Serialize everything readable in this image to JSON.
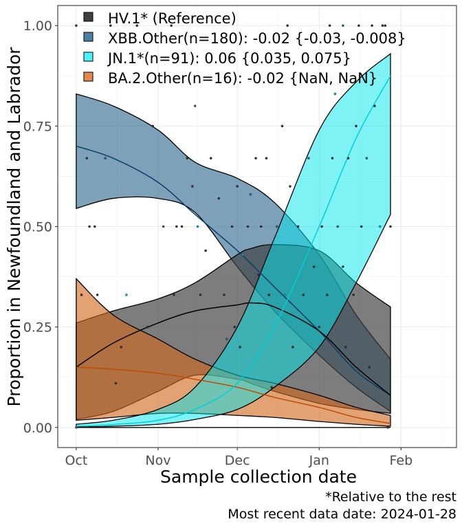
{
  "chart_data": {
    "type": "area",
    "xlabel": "Sample collection date",
    "ylabel": "Proportion in Newfoundland and Labrador",
    "x_ticks": [
      "Oct",
      "Nov",
      "Dec",
      "Jan",
      "Feb"
    ],
    "x_tick_dates": [
      "2023-10-01",
      "2023-11-01",
      "2023-12-01",
      "2024-01-01",
      "2024-02-01"
    ],
    "xlim": [
      "2023-09-24",
      "2024-02-22"
    ],
    "y_ticks": [
      "0.00",
      "0.25",
      "0.50",
      "0.75",
      "1.00"
    ],
    "ylim": [
      -0.05,
      1.05
    ],
    "grid": true,
    "legend_position": "top-left",
    "footnotes": [
      "*Relative to the rest",
      "Most recent data date: 2024-01-28"
    ],
    "series": [
      {
        "name": "HV.1* (Reference)",
        "color": "#404040",
        "x": [
          "2023-10-01",
          "2023-10-15",
          "2023-11-01",
          "2023-11-15",
          "2023-12-01",
          "2023-12-06",
          "2023-12-15",
          "2024-01-01",
          "2024-01-15",
          "2024-01-28"
        ],
        "fit": [
          0.15,
          0.21,
          0.26,
          0.29,
          0.305,
          0.31,
          0.3,
          0.24,
          0.15,
          0.08
        ],
        "lower": [
          0.02,
          0.04,
          0.09,
          0.13,
          0.12,
          0.11,
          0.09,
          0.06,
          0.045,
          0.035
        ],
        "upper": [
          0.26,
          0.29,
          0.32,
          0.36,
          0.43,
          0.445,
          0.455,
          0.44,
          0.36,
          0.3
        ]
      },
      {
        "name": "XBB.Other(n=180): -0.02 {-0.03, -0.008}",
        "color": "#2e6790",
        "x": [
          "2023-10-01",
          "2023-10-15",
          "2023-11-01",
          "2023-11-15",
          "2023-12-01",
          "2023-12-15",
          "2024-01-01",
          "2024-01-15",
          "2024-01-28"
        ],
        "fit": [
          0.7,
          0.67,
          0.61,
          0.53,
          0.44,
          0.35,
          0.24,
          0.14,
          0.08
        ],
        "lower": [
          0.545,
          0.57,
          0.57,
          0.535,
          0.4,
          0.29,
          0.18,
          0.1,
          0.04
        ],
        "upper": [
          0.83,
          0.8,
          0.74,
          0.66,
          0.62,
          0.56,
          0.43,
          0.28,
          0.17
        ]
      },
      {
        "name": "JN.1*(n=91): 0.06 {0.035, 0.075}",
        "color": "#00e5ee",
        "x": [
          "2023-10-01",
          "2023-10-15",
          "2023-11-01",
          "2023-11-15",
          "2023-12-01",
          "2023-12-15",
          "2024-01-01",
          "2024-01-15",
          "2024-01-28"
        ],
        "fit": [
          0.003,
          0.007,
          0.018,
          0.045,
          0.11,
          0.25,
          0.5,
          0.72,
          0.875
        ],
        "lower": [
          0.001,
          0.003,
          0.008,
          0.02,
          0.045,
          0.1,
          0.2,
          0.36,
          0.53
        ],
        "upper": [
          0.008,
          0.018,
          0.045,
          0.1,
          0.25,
          0.47,
          0.74,
          0.86,
          0.93
        ]
      },
      {
        "name": "BA.2.Other(n=16): -0.02 {NaN, NaN}",
        "color": "#d2691e",
        "x": [
          "2023-10-01",
          "2023-10-15",
          "2023-11-01",
          "2023-11-15",
          "2023-12-01",
          "2023-12-15",
          "2024-01-01",
          "2024-01-15",
          "2024-01-28"
        ],
        "fit": [
          0.15,
          0.145,
          0.135,
          0.12,
          0.1,
          0.075,
          0.05,
          0.025,
          0.01
        ],
        "lower": [
          0.018,
          0.025,
          0.035,
          0.035,
          0.03,
          0.025,
          0.015,
          0.008,
          0.003
        ],
        "upper": [
          0.37,
          0.28,
          0.22,
          0.17,
          0.13,
          0.11,
          0.08,
          0.05,
          0.03
        ]
      }
    ],
    "points": [
      {
        "x": "2023-10-01",
        "y": 0.0
      },
      {
        "x": "2023-10-01",
        "y": 1.0
      },
      {
        "x": "2023-10-03",
        "y": 0.33
      },
      {
        "x": "2023-10-05",
        "y": 0.67
      },
      {
        "x": "2023-10-06",
        "y": 0.5
      },
      {
        "x": "2023-10-08",
        "y": 0.5
      },
      {
        "x": "2023-10-09",
        "y": 0.33
      },
      {
        "x": "2023-10-12",
        "y": 0.67
      },
      {
        "x": "2023-10-14",
        "y": 1.0
      },
      {
        "x": "2023-10-16",
        "y": 0.11
      },
      {
        "x": "2023-10-18",
        "y": 0.2
      },
      {
        "x": "2023-10-20",
        "y": 0.33
      },
      {
        "x": "2023-10-28",
        "y": 0.25
      },
      {
        "x": "2023-10-30",
        "y": 0.75
      },
      {
        "x": "2023-11-03",
        "y": 0.5
      },
      {
        "x": "2023-11-06",
        "y": 1.0
      },
      {
        "x": "2023-11-07",
        "y": 0.33
      },
      {
        "x": "2023-11-08",
        "y": 0.5
      },
      {
        "x": "2023-11-10",
        "y": 0.5
      },
      {
        "x": "2023-11-12",
        "y": 0.67
      },
      {
        "x": "2023-11-14",
        "y": 0.6
      },
      {
        "x": "2023-11-15",
        "y": 0.8
      },
      {
        "x": "2023-11-16",
        "y": 0.5
      },
      {
        "x": "2023-11-17",
        "y": 0.33
      },
      {
        "x": "2023-11-19",
        "y": 0.44
      },
      {
        "x": "2023-11-21",
        "y": 0.67
      },
      {
        "x": "2023-11-24",
        "y": 0.57
      },
      {
        "x": "2023-11-26",
        "y": 0.33
      },
      {
        "x": "2023-11-27",
        "y": 0.22
      },
      {
        "x": "2023-11-29",
        "y": 0.5
      },
      {
        "x": "2023-11-30",
        "y": 0.25
      },
      {
        "x": "2023-12-01",
        "y": 0.6
      },
      {
        "x": "2023-12-02",
        "y": 0.2
      },
      {
        "x": "2023-12-03",
        "y": 0.43
      },
      {
        "x": "2023-12-05",
        "y": 0.5
      },
      {
        "x": "2023-12-06",
        "y": 0.58
      },
      {
        "x": "2023-12-08",
        "y": 0.67
      },
      {
        "x": "2023-12-09",
        "y": 0.38
      },
      {
        "x": "2023-12-10",
        "y": 0.5
      },
      {
        "x": "2023-12-12",
        "y": 0.67
      },
      {
        "x": "2023-12-13",
        "y": 0.33
      },
      {
        "x": "2023-12-14",
        "y": 0.1
      },
      {
        "x": "2023-12-16",
        "y": 0.5
      },
      {
        "x": "2023-12-18",
        "y": 0.75
      },
      {
        "x": "2023-12-19",
        "y": 0.33
      },
      {
        "x": "2023-12-21",
        "y": 0.6
      },
      {
        "x": "2023-12-22",
        "y": 0.2
      },
      {
        "x": "2023-12-24",
        "y": 0.5
      },
      {
        "x": "2023-12-26",
        "y": 0.33
      },
      {
        "x": "2023-12-28",
        "y": 0.67
      },
      {
        "x": "2023-12-30",
        "y": 0.4
      },
      {
        "x": "2024-01-01",
        "y": 0.25
      },
      {
        "x": "2024-01-02",
        "y": 0.5
      },
      {
        "x": "2024-01-04",
        "y": 0.33
      },
      {
        "x": "2024-01-06",
        "y": 0.67
      },
      {
        "x": "2024-01-07",
        "y": 0.83
      },
      {
        "x": "2024-01-08",
        "y": 0.5
      },
      {
        "x": "2024-01-10",
        "y": 0.4
      },
      {
        "x": "2024-01-11",
        "y": 0.2
      },
      {
        "x": "2024-01-12",
        "y": 0.67
      },
      {
        "x": "2024-01-14",
        "y": 0.33
      },
      {
        "x": "2024-01-15",
        "y": 0.75
      },
      {
        "x": "2024-01-17",
        "y": 0.5
      },
      {
        "x": "2024-01-19",
        "y": 0.67
      },
      {
        "x": "2024-01-20",
        "y": 0.15
      },
      {
        "x": "2024-01-22",
        "y": 0.8
      },
      {
        "x": "2024-01-24",
        "y": 0.5
      },
      {
        "x": "2024-01-26",
        "y": 1.0
      },
      {
        "x": "2024-01-27",
        "y": 0.0
      },
      {
        "x": "2024-01-28",
        "y": 0.5
      },
      {
        "x": "2024-01-10",
        "y": 1.0
      },
      {
        "x": "2024-01-16",
        "y": 1.0
      },
      {
        "x": "2024-01-21",
        "y": 1.0
      },
      {
        "x": "2024-01-25",
        "y": 1.0
      },
      {
        "x": "2023-10-24",
        "y": 1.0
      },
      {
        "x": "2023-12-20",
        "y": 1.0
      },
      {
        "x": "2024-01-05",
        "y": 1.0
      }
    ]
  }
}
